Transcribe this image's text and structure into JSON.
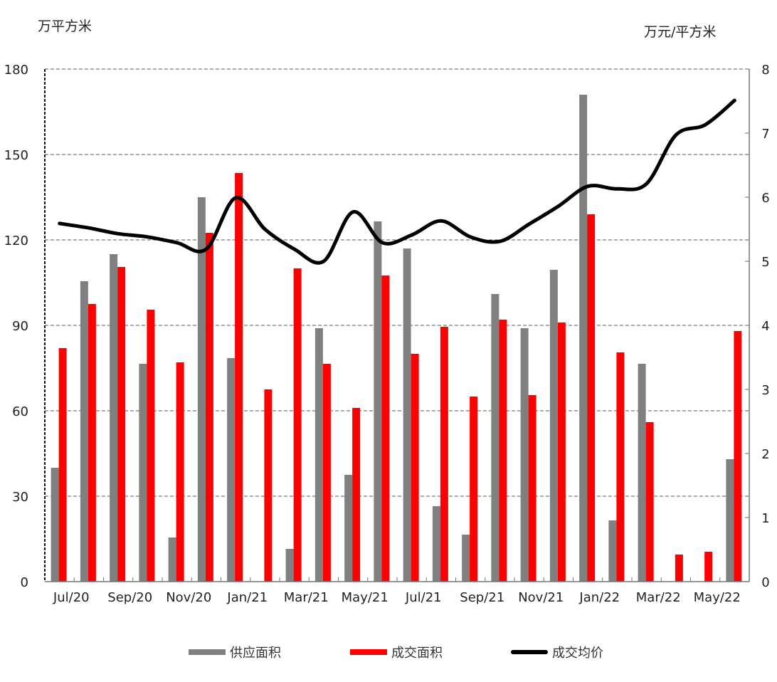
{
  "chart_data": {
    "type": "bar",
    "title": "",
    "xlabel": "",
    "ylabel": "万平方米",
    "ylabel_right": "万元/平方米",
    "ylim": [
      0,
      180
    ],
    "ylim_right": [
      0,
      8
    ],
    "yticks": [
      0,
      30,
      60,
      90,
      120,
      150,
      180
    ],
    "yticks_right": [
      0,
      1,
      2,
      3,
      4,
      5,
      6,
      7,
      8
    ],
    "grid": true,
    "legend_position": "bottom",
    "categories": [
      "Jul/20",
      "Aug/20",
      "Sep/20",
      "Oct/20",
      "Nov/20",
      "Dec/20",
      "Jan/21",
      "Feb/21",
      "Mar/21",
      "Apr/21",
      "May/21",
      "Jun/21",
      "Jul/21",
      "Aug/21",
      "Sep/21",
      "Oct/21",
      "Nov/21",
      "Dec/21",
      "Jan/22",
      "Feb/22",
      "Mar/22",
      "Apr/22",
      "May/22",
      "Jun/22"
    ],
    "xtick_labels": [
      "Jul/20",
      "Sep/20",
      "Nov/20",
      "Jan/21",
      "Mar/21",
      "May/21",
      "Jul/21",
      "Sep/21",
      "Nov/21",
      "Jan/22",
      "Mar/22",
      "May/22"
    ],
    "series": [
      {
        "name": "供应面积",
        "type": "bar",
        "axis": "left",
        "color": "#808080",
        "values": [
          40,
          105.5,
          115,
          76.5,
          15.5,
          135,
          78.5,
          0,
          11.5,
          89,
          37.5,
          126.5,
          117,
          26.5,
          16.5,
          101,
          89,
          109.5,
          171,
          21.5,
          76.5,
          0,
          0,
          43
        ]
      },
      {
        "name": "成交面积",
        "type": "bar",
        "axis": "left",
        "color": "#ff0000",
        "values": [
          82,
          97.5,
          110.5,
          95.5,
          77,
          122.5,
          143.5,
          67.5,
          110,
          76.5,
          61,
          107.5,
          80,
          89.5,
          65,
          92,
          65.5,
          91,
          129,
          80.5,
          56,
          9.5,
          10.5,
          88
        ]
      },
      {
        "name": "成交均价",
        "type": "line",
        "axis": "right",
        "color": "#000000",
        "values": [
          5.59,
          5.52,
          5.43,
          5.38,
          5.29,
          5.19,
          5.99,
          5.5,
          5.19,
          5.0,
          5.77,
          5.29,
          5.41,
          5.63,
          5.38,
          5.31,
          5.58,
          5.86,
          6.17,
          6.13,
          6.21,
          6.97,
          7.13,
          7.51
        ]
      }
    ]
  },
  "labels": {
    "unit_left": "万平方米",
    "unit_right": "万元/平方米"
  },
  "legend": [
    {
      "label": "供应面积",
      "color": "#808080",
      "kind": "bar"
    },
    {
      "label": "成交面积",
      "color": "#ff0000",
      "kind": "bar"
    },
    {
      "label": "成交均价",
      "color": "#000000",
      "kind": "line"
    }
  ]
}
